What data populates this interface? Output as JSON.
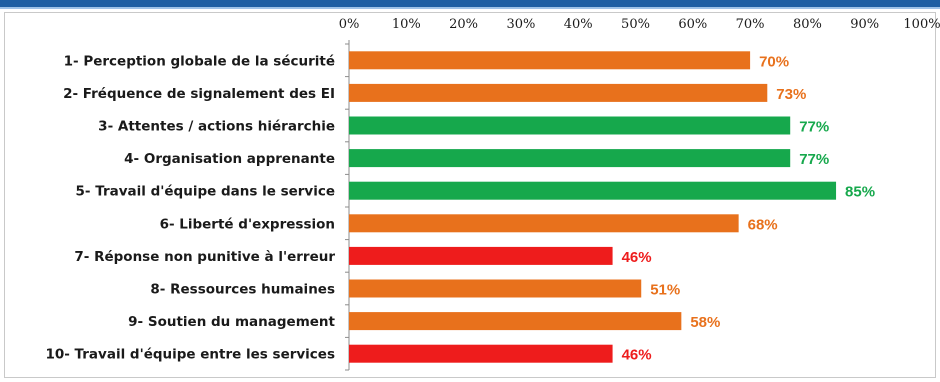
{
  "chart_data": {
    "type": "bar",
    "orientation": "horizontal",
    "x_ticks": [
      "0%",
      "10%",
      "20%",
      "30%",
      "40%",
      "50%",
      "60%",
      "70%",
      "80%",
      "90%",
      "100%"
    ],
    "xlim": [
      0,
      100
    ],
    "grid": false,
    "colors": {
      "orange": "#e8711c",
      "green": "#16a84c",
      "red": "#ee1c1c"
    },
    "categories": [
      "1- Perception globale de la sécurité",
      "2- Fréquence de signalement des EI",
      "3- Attentes / actions hiérarchie",
      "4- Organisation apprenante",
      "5- Travail d'équipe dans le service",
      "6- Liberté d'expression",
      "7- Réponse non punitive à l'erreur",
      "8- Ressources humaines",
      "9- Soutien du management",
      "10- Travail d'équipe entre les services"
    ],
    "values": [
      70,
      73,
      77,
      77,
      85,
      68,
      46,
      51,
      58,
      46
    ],
    "labels": [
      "70%",
      "73%",
      "77%",
      "77%",
      "85%",
      "68%",
      "46%",
      "51%",
      "58%",
      "46%"
    ],
    "bar_colors": [
      "orange",
      "orange",
      "green",
      "green",
      "green",
      "orange",
      "red",
      "orange",
      "orange",
      "red"
    ]
  }
}
